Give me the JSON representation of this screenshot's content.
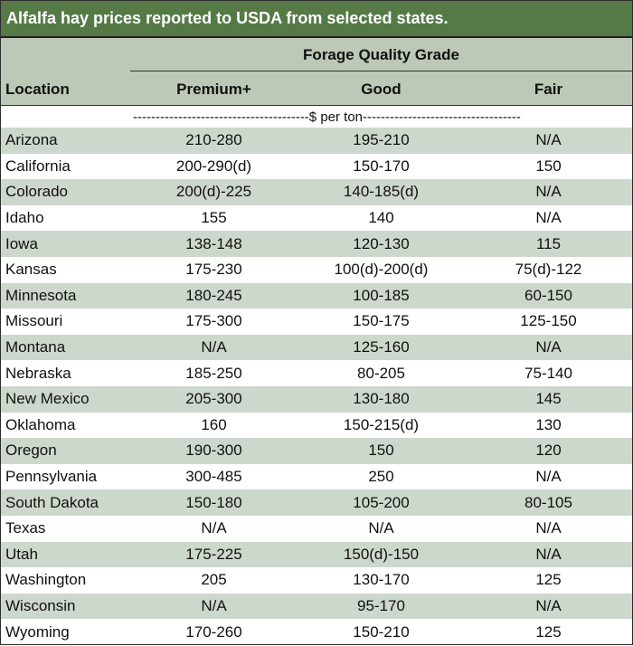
{
  "title": "Alfalfa hay prices reported to USDA from selected states.",
  "header": {
    "group_label": "Forage Quality Grade",
    "location": "Location",
    "premium": "Premium+",
    "good": "Good",
    "fair": "Fair"
  },
  "units": "---------------------------------------$ per ton-----------------------------------",
  "rows": [
    {
      "location": "Arizona",
      "premium": "210-280",
      "good": "195-210",
      "fair": "N/A"
    },
    {
      "location": "California",
      "premium": "200-290(d)",
      "good": "150-170",
      "fair": "150"
    },
    {
      "location": "Colorado",
      "premium": "200(d)-225",
      "good": "140-185(d)",
      "fair": "N/A"
    },
    {
      "location": "Idaho",
      "premium": "155",
      "good": "140",
      "fair": "N/A"
    },
    {
      "location": "Iowa",
      "premium": "138-148",
      "good": "120-130",
      "fair": "115"
    },
    {
      "location": "Kansas",
      "premium": "175-230",
      "good": "100(d)-200(d)",
      "fair": "75(d)-122"
    },
    {
      "location": "Minnesota",
      "premium": "180-245",
      "good": "100-185",
      "fair": "60-150"
    },
    {
      "location": "Missouri",
      "premium": "175-300",
      "good": "150-175",
      "fair": "125-150"
    },
    {
      "location": "Montana",
      "premium": "N/A",
      "good": "125-160",
      "fair": "N/A"
    },
    {
      "location": "Nebraska",
      "premium": "185-250",
      "good": "80-205",
      "fair": "75-140"
    },
    {
      "location": "New Mexico",
      "premium": "205-300",
      "good": "130-180",
      "fair": "145"
    },
    {
      "location": "Oklahoma",
      "premium": "160",
      "good": "150-215(d)",
      "fair": "130"
    },
    {
      "location": "Oregon",
      "premium": "190-300",
      "good": "150",
      "fair": "120"
    },
    {
      "location": "Pennsylvania",
      "premium": "300-485",
      "good": "250",
      "fair": "N/A"
    },
    {
      "location": "South Dakota",
      "premium": "150-180",
      "good": "105-200",
      "fair": "80-105"
    },
    {
      "location": "Texas",
      "premium": "N/A",
      "good": "N/A",
      "fair": "N/A"
    },
    {
      "location": "Utah",
      "premium": "175-225",
      "good": "150(d)-150",
      "fair": "N/A"
    },
    {
      "location": "Washington",
      "premium": "205",
      "good": "130-170",
      "fair": "125"
    },
    {
      "location": "Wisconsin",
      "premium": "N/A",
      "good": "95-170",
      "fair": "N/A"
    },
    {
      "location": "Wyoming",
      "premium": "170-260",
      "good": "150-210",
      "fair": "125"
    }
  ],
  "colors": {
    "title_bg": "#557a46",
    "header_bg": "#bcc9b7",
    "row_shade": "#ccd8cb"
  }
}
